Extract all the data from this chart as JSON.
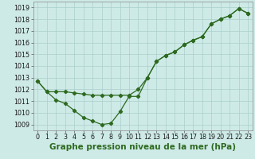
{
  "series1": {
    "x": [
      0,
      1,
      2,
      3,
      4,
      5,
      6,
      7,
      8,
      9,
      10,
      11,
      12,
      13,
      14,
      15,
      16,
      17,
      18,
      19,
      20,
      21,
      22,
      23
    ],
    "y": [
      1012.7,
      1011.8,
      1011.1,
      1010.8,
      1010.2,
      1009.6,
      1009.3,
      1009.0,
      1009.1,
      1010.1,
      1011.4,
      1011.4,
      1013.0,
      1014.4,
      1014.9,
      1015.2,
      1015.8,
      1016.2,
      1016.5,
      1017.6,
      1018.0,
      1018.3,
      1018.9,
      1018.5
    ]
  },
  "series2": {
    "x": [
      0,
      1,
      2,
      3,
      4,
      5,
      6,
      7,
      8,
      9,
      10,
      11,
      12,
      13,
      14,
      15,
      16,
      17,
      18,
      19,
      20,
      21,
      22,
      23
    ],
    "y": [
      1012.7,
      1011.8,
      1011.8,
      1011.8,
      1011.7,
      1011.6,
      1011.5,
      1011.5,
      1011.5,
      1011.5,
      1011.5,
      1012.0,
      1013.0,
      1014.4,
      1014.9,
      1015.2,
      1015.8,
      1016.2,
      1016.5,
      1017.6,
      1018.0,
      1018.3,
      1018.9,
      1018.5
    ]
  },
  "color": "#2d6a1f",
  "bg_color": "#ceeae7",
  "grid_color": "#aacfcc",
  "ylim": [
    1008.5,
    1019.5
  ],
  "yticks": [
    1009,
    1010,
    1011,
    1012,
    1013,
    1014,
    1015,
    1016,
    1017,
    1018,
    1019
  ],
  "xlim": [
    -0.5,
    23.5
  ],
  "xticks": [
    0,
    1,
    2,
    3,
    4,
    5,
    6,
    7,
    8,
    9,
    10,
    11,
    12,
    13,
    14,
    15,
    16,
    17,
    18,
    19,
    20,
    21,
    22,
    23
  ],
  "xlabel": "Graphe pression niveau de la mer (hPa)",
  "xlabel_fontsize": 7.5,
  "axis_fontsize": 5.8,
  "marker": "D",
  "markersize": 2.2,
  "linewidth": 0.9
}
